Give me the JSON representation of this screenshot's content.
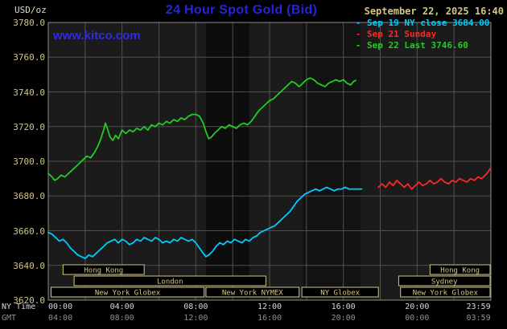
{
  "header": {
    "units": "USD/oz",
    "title": "24 Hour Spot Gold (Bid)",
    "datetime": "September 22, 2025 16:40",
    "watermark": "www.kitco.com"
  },
  "legend": {
    "items": [
      {
        "label": "Sep 19 NY close 3684.00",
        "color": "#00ccff"
      },
      {
        "label": "Sep 21 Sunday",
        "color": "#ff2626"
      },
      {
        "label": "Sep 22 Last 3746.60",
        "color": "#22cc22"
      }
    ]
  },
  "axis": {
    "ny_label": "NY Time",
    "gmt_label": "GMT"
  },
  "colors": {
    "background": "#000000",
    "title_blue": "#2525dd",
    "watermark_blue": "#2c2ce6",
    "tan": "#d2c684",
    "axis_white": "#d8d8d8",
    "axis_gray": "#909090"
  },
  "chart_data": {
    "type": "line",
    "title": "24 Hour Spot Gold (Bid)",
    "ylabel": "USD/oz",
    "plot_bg": "#1b1b1b",
    "border_color": "#8c8c8c",
    "session_color": "#d2c684",
    "grid": {
      "color": "#50504a",
      "h_step": 20,
      "v_step_hours": 2
    },
    "dark_bands": [
      [
        8.55,
        10.9,
        0.5
      ],
      [
        13.8,
        16.95,
        0.32
      ]
    ],
    "y_axis": {
      "min": 3620,
      "max": 3780,
      "tick_step": 20,
      "ticks": [
        "3780.0",
        "3760.0",
        "3740.0",
        "3720.0",
        "3700.0",
        "3680.0",
        "3660.0",
        "3640.0",
        "3620.0"
      ]
    },
    "x_axis": {
      "range_hours": [
        0,
        24
      ],
      "tick_hours": [
        0,
        4,
        8,
        12,
        16,
        20,
        23.983
      ],
      "ticks_ny": [
        "00:00",
        "04:00",
        "08:00",
        "12:00",
        "16:00",
        "20:00",
        "23:59"
      ],
      "ticks_gmt": [
        "04:00",
        "08:00",
        "12:00",
        "16:00",
        "20:00",
        "00:00",
        "03:59"
      ]
    },
    "series": [
      {
        "name": "Sep 19 NY close",
        "close": 3684.0,
        "color": "#00ccff",
        "points": [
          [
            0,
            3659
          ],
          [
            0.2,
            3658
          ],
          [
            0.4,
            3656
          ],
          [
            0.6,
            3654
          ],
          [
            0.8,
            3655
          ],
          [
            1.0,
            3653
          ],
          [
            1.2,
            3650
          ],
          [
            1.4,
            3648
          ],
          [
            1.6,
            3646
          ],
          [
            1.8,
            3645
          ],
          [
            2.0,
            3644
          ],
          [
            2.2,
            3646
          ],
          [
            2.4,
            3645
          ],
          [
            2.6,
            3647
          ],
          [
            2.8,
            3649
          ],
          [
            3.0,
            3651
          ],
          [
            3.2,
            3653
          ],
          [
            3.4,
            3654
          ],
          [
            3.6,
            3655
          ],
          [
            3.8,
            3653
          ],
          [
            4.0,
            3655
          ],
          [
            4.2,
            3654
          ],
          [
            4.4,
            3652
          ],
          [
            4.6,
            3653
          ],
          [
            4.8,
            3655
          ],
          [
            5.0,
            3654
          ],
          [
            5.2,
            3656
          ],
          [
            5.4,
            3655
          ],
          [
            5.6,
            3654
          ],
          [
            5.8,
            3656
          ],
          [
            6.0,
            3655
          ],
          [
            6.2,
            3653
          ],
          [
            6.4,
            3654
          ],
          [
            6.6,
            3653
          ],
          [
            6.8,
            3655
          ],
          [
            7.0,
            3654
          ],
          [
            7.2,
            3656
          ],
          [
            7.4,
            3655
          ],
          [
            7.6,
            3654
          ],
          [
            7.8,
            3655
          ],
          [
            8.0,
            3653
          ],
          [
            8.2,
            3650
          ],
          [
            8.4,
            3647
          ],
          [
            8.55,
            3645
          ],
          [
            8.7,
            3646
          ],
          [
            8.9,
            3648
          ],
          [
            9.1,
            3651
          ],
          [
            9.3,
            3653
          ],
          [
            9.5,
            3652
          ],
          [
            9.7,
            3654
          ],
          [
            9.9,
            3653
          ],
          [
            10.1,
            3655
          ],
          [
            10.3,
            3654
          ],
          [
            10.5,
            3653
          ],
          [
            10.7,
            3655
          ],
          [
            10.9,
            3654
          ],
          [
            11.1,
            3656
          ],
          [
            11.3,
            3657
          ],
          [
            11.5,
            3659
          ],
          [
            11.7,
            3660
          ],
          [
            11.9,
            3661
          ],
          [
            12.1,
            3662
          ],
          [
            12.3,
            3663
          ],
          [
            12.5,
            3665
          ],
          [
            12.7,
            3667
          ],
          [
            12.9,
            3669
          ],
          [
            13.1,
            3671
          ],
          [
            13.3,
            3674
          ],
          [
            13.5,
            3677
          ],
          [
            13.7,
            3679
          ],
          [
            13.9,
            3681
          ],
          [
            14.1,
            3682
          ],
          [
            14.3,
            3683
          ],
          [
            14.5,
            3684
          ],
          [
            14.7,
            3683
          ],
          [
            14.9,
            3684
          ],
          [
            15.1,
            3685
          ],
          [
            15.3,
            3684
          ],
          [
            15.5,
            3683
          ],
          [
            15.7,
            3684
          ],
          [
            15.9,
            3684
          ],
          [
            16.1,
            3685
          ],
          [
            16.3,
            3684
          ],
          [
            16.6,
            3684
          ],
          [
            17.0,
            3684
          ]
        ]
      },
      {
        "name": "Sep 21 Sunday",
        "color": "#ff2626",
        "points": [
          [
            17.9,
            3685
          ],
          [
            18.1,
            3687
          ],
          [
            18.3,
            3685
          ],
          [
            18.5,
            3688
          ],
          [
            18.7,
            3686
          ],
          [
            18.9,
            3689
          ],
          [
            19.1,
            3687
          ],
          [
            19.3,
            3685
          ],
          [
            19.5,
            3687
          ],
          [
            19.7,
            3684
          ],
          [
            19.9,
            3686
          ],
          [
            20.1,
            3688
          ],
          [
            20.3,
            3686
          ],
          [
            20.5,
            3687
          ],
          [
            20.7,
            3689
          ],
          [
            20.9,
            3687
          ],
          [
            21.1,
            3688
          ],
          [
            21.3,
            3690
          ],
          [
            21.5,
            3688
          ],
          [
            21.7,
            3687
          ],
          [
            21.9,
            3689
          ],
          [
            22.1,
            3688
          ],
          [
            22.3,
            3690
          ],
          [
            22.5,
            3689
          ],
          [
            22.7,
            3688
          ],
          [
            22.9,
            3690
          ],
          [
            23.1,
            3689
          ],
          [
            23.3,
            3691
          ],
          [
            23.5,
            3690
          ],
          [
            23.7,
            3692
          ],
          [
            23.85,
            3694
          ],
          [
            23.98,
            3696
          ]
        ]
      },
      {
        "name": "Sep 22 Last",
        "last": 3746.6,
        "color": "#22cc22",
        "points": [
          [
            0,
            3693
          ],
          [
            0.2,
            3691
          ],
          [
            0.35,
            3689
          ],
          [
            0.5,
            3690
          ],
          [
            0.7,
            3692
          ],
          [
            0.9,
            3691
          ],
          [
            1.1,
            3693
          ],
          [
            1.3,
            3695
          ],
          [
            1.5,
            3697
          ],
          [
            1.7,
            3699
          ],
          [
            1.9,
            3701
          ],
          [
            2.1,
            3703
          ],
          [
            2.3,
            3702
          ],
          [
            2.5,
            3705
          ],
          [
            2.7,
            3709
          ],
          [
            2.85,
            3713
          ],
          [
            3.0,
            3718
          ],
          [
            3.1,
            3722
          ],
          [
            3.2,
            3719
          ],
          [
            3.35,
            3714
          ],
          [
            3.5,
            3712
          ],
          [
            3.65,
            3715
          ],
          [
            3.8,
            3713
          ],
          [
            4.0,
            3718
          ],
          [
            4.2,
            3716
          ],
          [
            4.4,
            3718
          ],
          [
            4.6,
            3717
          ],
          [
            4.8,
            3719
          ],
          [
            5.0,
            3718
          ],
          [
            5.2,
            3720
          ],
          [
            5.4,
            3718
          ],
          [
            5.6,
            3721
          ],
          [
            5.8,
            3720
          ],
          [
            6.0,
            3722
          ],
          [
            6.2,
            3721
          ],
          [
            6.4,
            3723
          ],
          [
            6.6,
            3722
          ],
          [
            6.8,
            3724
          ],
          [
            7.0,
            3723
          ],
          [
            7.2,
            3725
          ],
          [
            7.4,
            3724
          ],
          [
            7.6,
            3726
          ],
          [
            7.8,
            3727
          ],
          [
            8.0,
            3727
          ],
          [
            8.2,
            3726
          ],
          [
            8.4,
            3722
          ],
          [
            8.55,
            3717
          ],
          [
            8.7,
            3713
          ],
          [
            8.85,
            3714
          ],
          [
            9.0,
            3716
          ],
          [
            9.2,
            3718
          ],
          [
            9.4,
            3720
          ],
          [
            9.6,
            3719
          ],
          [
            9.8,
            3721
          ],
          [
            10.0,
            3720
          ],
          [
            10.2,
            3719
          ],
          [
            10.4,
            3721
          ],
          [
            10.6,
            3722
          ],
          [
            10.8,
            3721
          ],
          [
            11.0,
            3723
          ],
          [
            11.2,
            3726
          ],
          [
            11.4,
            3729
          ],
          [
            11.6,
            3731
          ],
          [
            11.8,
            3733
          ],
          [
            12.0,
            3735
          ],
          [
            12.2,
            3736
          ],
          [
            12.4,
            3738
          ],
          [
            12.6,
            3740
          ],
          [
            12.8,
            3742
          ],
          [
            13.0,
            3744
          ],
          [
            13.2,
            3746
          ],
          [
            13.4,
            3745
          ],
          [
            13.6,
            3743
          ],
          [
            13.8,
            3745
          ],
          [
            14.0,
            3747
          ],
          [
            14.2,
            3748
          ],
          [
            14.4,
            3747
          ],
          [
            14.6,
            3745
          ],
          [
            14.8,
            3744
          ],
          [
            15.0,
            3743
          ],
          [
            15.2,
            3745
          ],
          [
            15.4,
            3746
          ],
          [
            15.6,
            3747
          ],
          [
            15.8,
            3746
          ],
          [
            16.0,
            3747
          ],
          [
            16.2,
            3745
          ],
          [
            16.4,
            3744
          ],
          [
            16.55,
            3746
          ],
          [
            16.67,
            3746.6
          ]
        ]
      }
    ],
    "sessions": [
      {
        "row": 0,
        "label": "Hong Kong",
        "start": 0.8,
        "end": 5.2
      },
      {
        "row": 0,
        "label": "Hong Kong",
        "start": 20.7,
        "end": 24
      },
      {
        "row": 1,
        "label": "London",
        "start": 1.4,
        "end": 11.8
      },
      {
        "row": 1,
        "label": "Sydney",
        "start": 19.0,
        "end": 24
      },
      {
        "row": 2,
        "label": "New York Globex",
        "start": 0.15,
        "end": 8.45
      },
      {
        "row": 2,
        "label": "New York NYMEX",
        "start": 8.55,
        "end": 13.6
      },
      {
        "row": 2,
        "label": "NY Globex",
        "start": 13.75,
        "end": 17.9
      },
      {
        "row": 2,
        "label": "New York Globex",
        "start": 19.1,
        "end": 24
      }
    ]
  }
}
